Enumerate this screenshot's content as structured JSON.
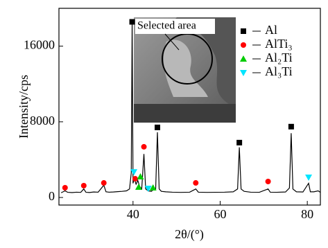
{
  "chart_data": {
    "type": "line",
    "inset_label": "Selected area",
    "xlabel": "2θ/(°)",
    "ylabel": "Intensity/cps",
    "xlim": [
      23,
      83
    ],
    "ylim": [
      -800,
      20000
    ],
    "xticks": [
      40,
      60,
      80
    ],
    "yticks": [
      0,
      8000,
      16000
    ],
    "legend": "upper right",
    "series": [
      {
        "color": "#000000",
        "x": [
          23.5,
          24.4,
          25,
          26,
          27,
          28,
          28.7,
          29.2,
          30,
          31,
          32,
          33.3,
          33.8,
          34.5,
          35.5,
          36.5,
          37.5,
          38.5,
          39.2,
          39.6,
          39.8,
          40.0,
          40.3,
          40.7,
          41.1,
          41.5,
          42.0,
          42.5,
          42.9,
          43.5,
          44.2,
          44.6,
          45.2,
          45.6,
          46.0,
          46.5,
          47.5,
          49,
          51,
          53,
          54.4,
          55,
          57,
          59,
          61,
          63,
          64.0,
          64.4,
          64.8,
          65.5,
          67,
          69,
          71.0,
          71.5,
          73,
          75,
          75.9,
          76.3,
          76.7,
          77.5,
          79,
          80.3,
          80.7,
          81.5,
          82.5,
          83
        ],
        "values": [
          500,
          700,
          550,
          520,
          560,
          540,
          900,
          550,
          530,
          580,
          560,
          1300,
          600,
          560,
          580,
          620,
          650,
          700,
          900,
          2600,
          18700,
          1500,
          2000,
          1400,
          1800,
          1200,
          900,
          4600,
          900,
          700,
          650,
          800,
          900,
          6900,
          900,
          650,
          600,
          560,
          540,
          560,
          900,
          560,
          540,
          550,
          560,
          600,
          900,
          5300,
          900,
          650,
          560,
          550,
          900,
          560,
          550,
          580,
          1000,
          6800,
          900,
          600,
          580,
          1500,
          600,
          600,
          700,
          550
        ]
      },
      {
        "name": "Al",
        "color": "#000000",
        "marker": "square",
        "x": [
          39.8,
          45.6,
          64.4,
          76.3
        ],
        "values": [
          18570,
          7410,
          5800,
          7490
        ]
      },
      {
        "name": "AlTi₃",
        "color": "#ff0000",
        "marker": "circle",
        "x": [
          24.4,
          28.7,
          33.3,
          40.5,
          42.5,
          54.4,
          71.0
        ],
        "values": [
          1030,
          1250,
          1540,
          1980,
          5360,
          1540,
          1690
        ]
      },
      {
        "name": "Al₂Ti",
        "color": "#00cc00",
        "marker": "triangle-up",
        "x": [
          41.3,
          41.7,
          44.6
        ],
        "values": [
          1100,
          2200,
          1030
        ]
      },
      {
        "name": "Al₃Ti",
        "color": "#00e5ff",
        "marker": "triangle-down",
        "x": [
          40.2,
          43.5,
          80.3
        ],
        "values": [
          2700,
          950,
          2130
        ]
      }
    ]
  }
}
